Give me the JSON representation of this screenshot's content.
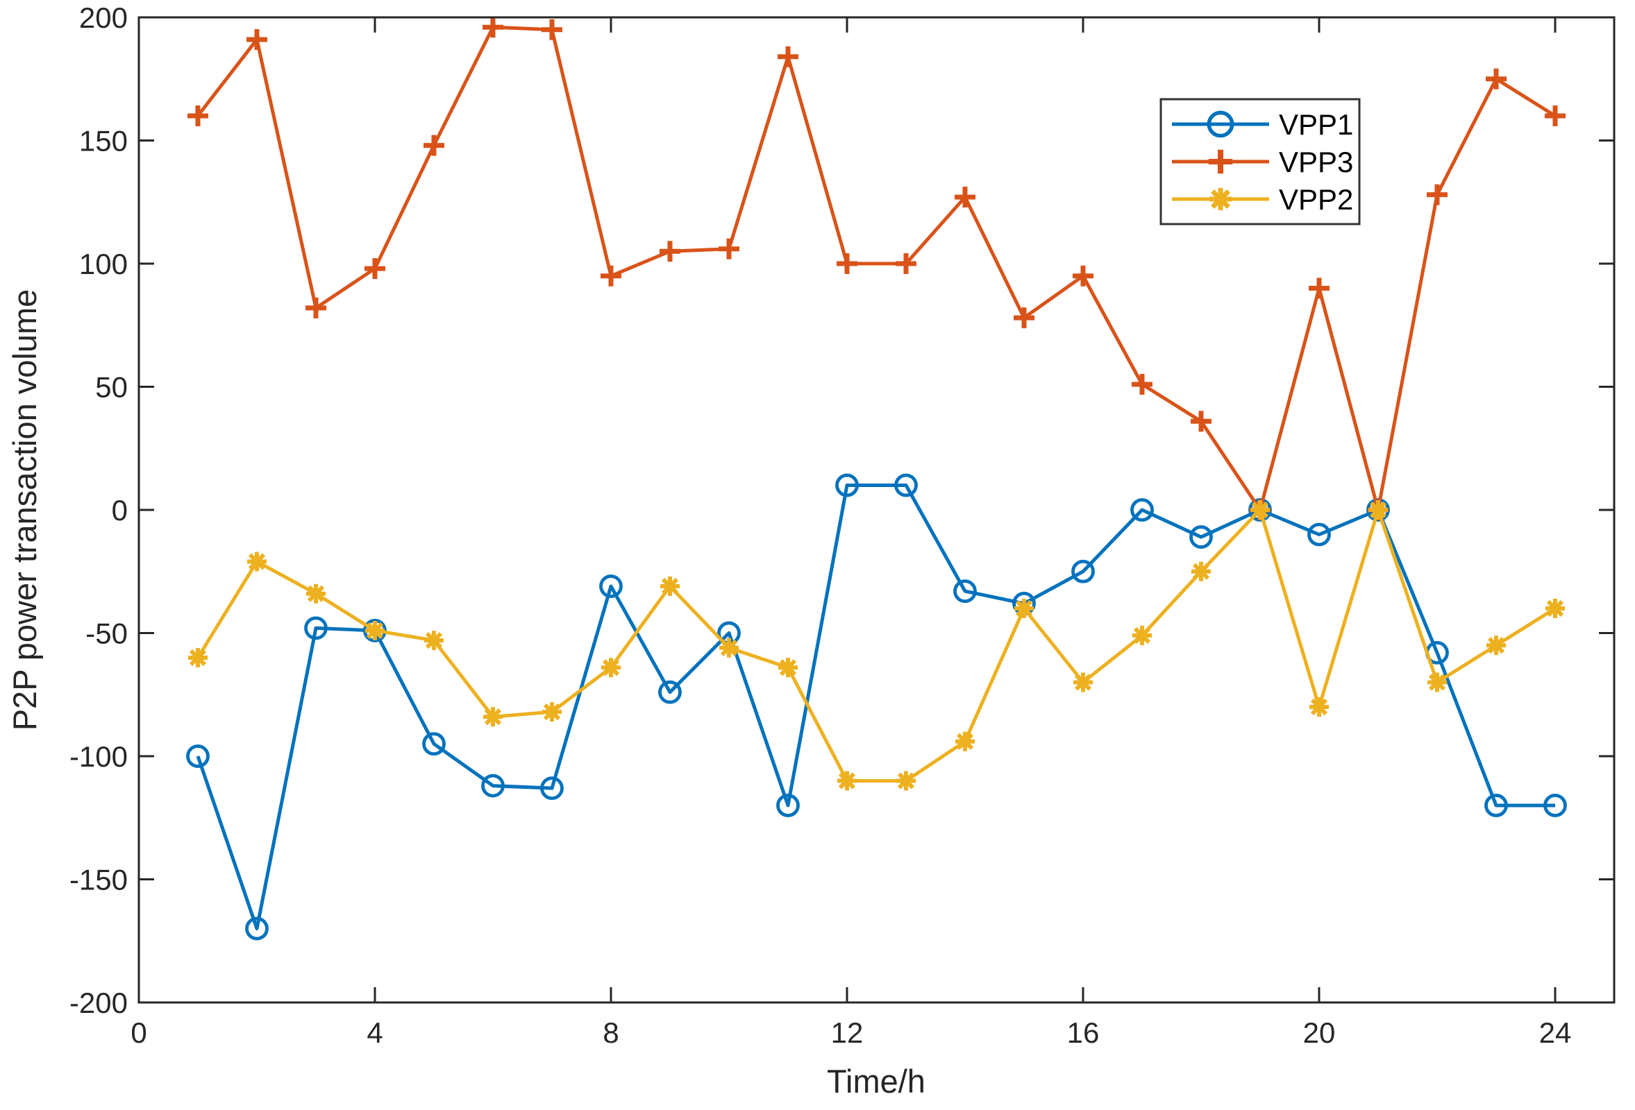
{
  "chart_data": {
    "type": "line",
    "title": "",
    "xlabel": "Time/h",
    "ylabel": "P2P power transaction volume",
    "xlim": [
      0,
      25
    ],
    "ylim": [
      -200,
      200
    ],
    "xticks": [
      0,
      4,
      8,
      12,
      16,
      20,
      24
    ],
    "yticks": [
      -200,
      -150,
      -100,
      -50,
      0,
      50,
      100,
      150,
      200
    ],
    "grid": false,
    "x": [
      1,
      2,
      3,
      4,
      5,
      6,
      7,
      8,
      9,
      10,
      11,
      12,
      13,
      14,
      15,
      16,
      17,
      18,
      19,
      20,
      21,
      22,
      23,
      24
    ],
    "series": [
      {
        "name": "VPP1",
        "color": "#0072BD",
        "marker": "circle",
        "values": [
          -100,
          -170,
          -48,
          -49,
          -95,
          -112,
          -113,
          -31,
          -74,
          -50,
          -120,
          10,
          10,
          -33,
          -38,
          -25,
          0,
          -11,
          0,
          -10,
          0,
          -58,
          -120,
          -120
        ]
      },
      {
        "name": "VPP3",
        "color": "#D95319",
        "marker": "plus",
        "values": [
          160,
          191,
          82,
          98,
          148,
          196,
          195,
          95,
          105,
          106,
          184,
          100,
          100,
          127,
          78,
          95,
          51,
          36,
          0,
          90,
          0,
          128,
          175,
          160
        ]
      },
      {
        "name": "VPP2",
        "color": "#EDB120",
        "marker": "asterisk",
        "values": [
          -60,
          -21,
          -34,
          -49,
          -53,
          -84,
          -82,
          -64,
          -31,
          -56,
          -64,
          -110,
          -110,
          -94,
          -40,
          -70,
          -51,
          -25,
          0,
          -80,
          0,
          -70,
          -55,
          -40
        ]
      }
    ],
    "legend": {
      "position": "northeast",
      "entries": [
        "VPP1",
        "VPP3",
        "VPP2"
      ]
    },
    "axis_color": "#262626",
    "legend_text_color": "#000000"
  }
}
